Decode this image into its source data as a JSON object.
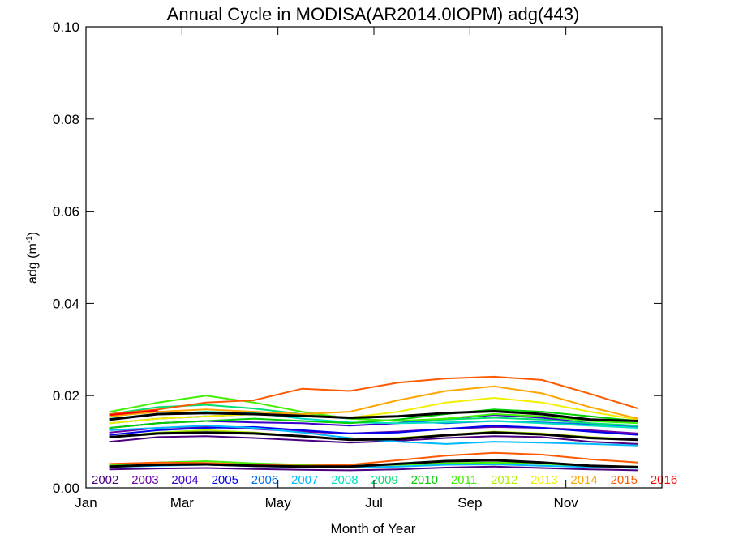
{
  "chart_data": {
    "type": "line",
    "title": "Annual Cycle in MODISA(AR2014.0IOPM) adg(443)",
    "xlabel": "Month of Year",
    "ylabel_main": "adg (m",
    "ylabel_sup": "-1",
    "ylabel_close": ")",
    "xlim": [
      0,
      12
    ],
    "ylim": [
      0,
      0.1
    ],
    "x_ticks": [
      {
        "x": 0,
        "label": "Jan"
      },
      {
        "x": 2,
        "label": "Mar"
      },
      {
        "x": 4,
        "label": "May"
      },
      {
        "x": 6,
        "label": "Jul"
      },
      {
        "x": 8,
        "label": "Sep"
      },
      {
        "x": 10,
        "label": "Nov"
      }
    ],
    "y_ticks": [
      {
        "y": 0.0,
        "label": "0.00"
      },
      {
        "y": 0.02,
        "label": "0.02"
      },
      {
        "y": 0.04,
        "label": "0.04"
      },
      {
        "y": 0.06,
        "label": "0.06"
      },
      {
        "y": 0.08,
        "label": "0.08"
      },
      {
        "y": 0.1,
        "label": "0.10"
      }
    ],
    "x": [
      0.5,
      1.5,
      2.5,
      3.5,
      4.5,
      5.5,
      6.5,
      7.5,
      8.5,
      9.5,
      10.5,
      11.5
    ],
    "series": [
      {
        "name": "2002",
        "color": "#4b0082",
        "values": [
          0.01,
          0.011,
          0.0112,
          0.0108,
          0.0103,
          0.0098,
          0.0102,
          0.0108,
          0.0112,
          0.011,
          0.01,
          0.0095
        ]
      },
      {
        "name": "2003",
        "color": "#6a00a8",
        "values": [
          0.012,
          0.013,
          0.0132,
          0.0128,
          0.0122,
          0.0118,
          0.0122,
          0.0128,
          0.0132,
          0.013,
          0.0125,
          0.0118
        ]
      },
      {
        "name": "2004",
        "color": "#3a00cc",
        "values": [
          0.013,
          0.014,
          0.0145,
          0.0142,
          0.014,
          0.0135,
          0.014,
          0.015,
          0.0158,
          0.0152,
          0.014,
          0.0132
        ]
      },
      {
        "name": "2005",
        "color": "#0000ee",
        "values": [
          0.0115,
          0.0125,
          0.013,
          0.0132,
          0.0125,
          0.0118,
          0.012,
          0.0128,
          0.0135,
          0.013,
          0.0122,
          0.0115
        ]
      },
      {
        "name": "2006",
        "color": "#0070ee",
        "values": [
          0.014,
          0.015,
          0.0155,
          0.016,
          0.0158,
          0.015,
          0.0145,
          0.014,
          0.0145,
          0.0142,
          0.0138,
          0.0132
        ]
      },
      {
        "name": "2007",
        "color": "#00b8ff",
        "values": [
          0.0125,
          0.013,
          0.0135,
          0.013,
          0.012,
          0.0108,
          0.01,
          0.0095,
          0.01,
          0.0098,
          0.0095,
          0.0092
        ]
      },
      {
        "name": "2008",
        "color": "#00e0c0",
        "values": [
          0.015,
          0.016,
          0.0165,
          0.0162,
          0.015,
          0.0142,
          0.014,
          0.0142,
          0.0145,
          0.014,
          0.0135,
          0.013
        ]
      },
      {
        "name": "2009",
        "color": "#00e070",
        "values": [
          0.016,
          0.0175,
          0.018,
          0.0172,
          0.016,
          0.015,
          0.0145,
          0.0148,
          0.0152,
          0.0148,
          0.014,
          0.0135
        ]
      },
      {
        "name": "2010",
        "color": "#00d000",
        "values": [
          0.013,
          0.014,
          0.0145,
          0.015,
          0.0145,
          0.014,
          0.0148,
          0.016,
          0.017,
          0.0165,
          0.0155,
          0.0145
        ]
      },
      {
        "name": "2011",
        "color": "#40f000",
        "values": [
          0.0165,
          0.0185,
          0.02,
          0.0185,
          0.0165,
          0.015,
          0.0145,
          0.015,
          0.016,
          0.0155,
          0.0145,
          0.014
        ]
      },
      {
        "name": "2012",
        "color": "#b0f000",
        "values": [
          0.011,
          0.012,
          0.0125,
          0.012,
          0.0112,
          0.0105,
          0.0108,
          0.0115,
          0.0122,
          0.0118,
          0.011,
          0.0105
        ]
      },
      {
        "name": "2013",
        "color": "#f0f000",
        "values": [
          0.014,
          0.015,
          0.0155,
          0.016,
          0.0158,
          0.0152,
          0.0165,
          0.0185,
          0.0195,
          0.0185,
          0.0165,
          0.0148
        ]
      },
      {
        "name": "2014",
        "color": "#ffa500",
        "values": [
          0.0155,
          0.0165,
          0.017,
          0.0165,
          0.016,
          0.0165,
          0.019,
          0.021,
          0.022,
          0.0205,
          0.0175,
          0.015
        ]
      },
      {
        "name": "2015",
        "color": "#ff5a00",
        "values": [
          0.016,
          0.017,
          0.0185,
          0.019,
          0.0215,
          0.021,
          0.0228,
          0.0237,
          0.0241,
          0.0234,
          0.0204,
          0.0172
        ]
      },
      {
        "name": "2016",
        "color": "#ff0000",
        "values": [
          0.0158,
          0.0168,
          null,
          null,
          null,
          null,
          null,
          null,
          null,
          null,
          null,
          null
        ]
      }
    ],
    "reference_lines": [
      {
        "color": "#000000",
        "values": [
          0.0148,
          0.016,
          0.0162,
          0.016,
          0.0156,
          0.0152,
          0.0155,
          0.0162,
          0.0166,
          0.016,
          0.0148,
          0.0145
        ]
      },
      {
        "color": "#000000",
        "values": [
          0.011,
          0.0118,
          0.012,
          0.0118,
          0.0112,
          0.0104,
          0.0106,
          0.0114,
          0.012,
          0.0116,
          0.0108,
          0.0104
        ]
      },
      {
        "color": "#000000",
        "values": [
          0.0046,
          0.005,
          0.0051,
          0.0048,
          0.0046,
          0.0046,
          0.0052,
          0.0058,
          0.006,
          0.0055,
          0.0048,
          0.0045
        ]
      }
    ],
    "low_series": [
      {
        "color": "#4b0082",
        "values": [
          0.004,
          0.0042,
          0.0043,
          0.0041,
          0.0039,
          0.0038,
          0.004,
          0.0044,
          0.0046,
          0.0043,
          0.004,
          0.0038
        ]
      },
      {
        "color": "#00b8ff",
        "values": [
          0.0045,
          0.0048,
          0.005,
          0.0047,
          0.0045,
          0.0044,
          0.0046,
          0.005,
          0.0051,
          0.0048,
          0.0045,
          0.0043
        ]
      },
      {
        "color": "#40f000",
        "values": [
          0.005,
          0.0055,
          0.0058,
          0.0053,
          0.005,
          0.0048,
          0.005,
          0.0053,
          0.0055,
          0.0052,
          0.0048,
          0.0046
        ]
      },
      {
        "color": "#ff5a00",
        "values": [
          0.0052,
          0.0055,
          0.0054,
          0.005,
          0.0048,
          0.005,
          0.006,
          0.007,
          0.0076,
          0.0072,
          0.0062,
          0.0055
        ]
      }
    ]
  }
}
